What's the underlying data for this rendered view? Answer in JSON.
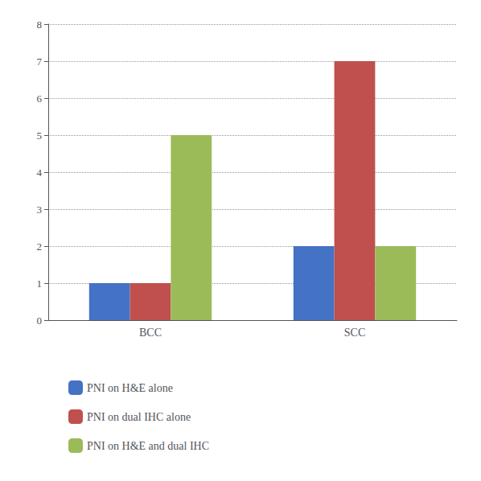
{
  "chart_data": {
    "type": "bar",
    "categories": [
      "BCC",
      "SCC"
    ],
    "series": [
      {
        "name": "PNI on H&E alone",
        "color": "#4472C4",
        "values": [
          1,
          2
        ]
      },
      {
        "name": "PNI on dual IHC alone",
        "color": "#C0504D",
        "values": [
          1,
          7
        ]
      },
      {
        "name": "PNI on H&E and dual IHC",
        "color": "#9BBB59",
        "values": [
          5,
          2
        ]
      }
    ],
    "ylim": [
      0,
      8
    ],
    "yticks": [
      0,
      1,
      2,
      3,
      4,
      5,
      6,
      7,
      8
    ],
    "grid": true,
    "legend": "bottom"
  }
}
